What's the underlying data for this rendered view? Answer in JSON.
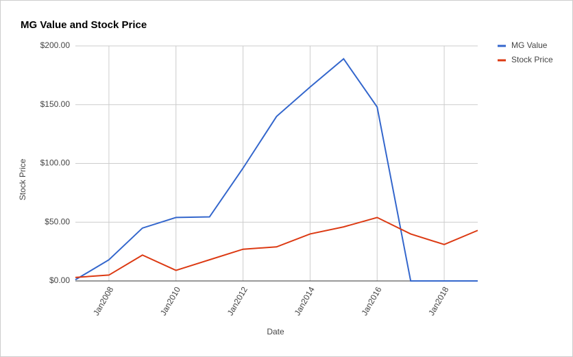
{
  "chart_data": {
    "type": "line",
    "title": "MG Value and Stock Price",
    "x_label": "Date",
    "y_label": "Stock Price",
    "x": [
      2007,
      2008,
      2009,
      2010,
      2011,
      2012,
      2013,
      2014,
      2015,
      2016,
      2017,
      2018,
      2019
    ],
    "series": [
      {
        "name": "MG Value",
        "color": "#3366cc",
        "values": [
          1,
          18,
          45,
          54,
          54.5,
          96,
          140,
          165,
          189,
          148,
          0,
          0,
          0
        ]
      },
      {
        "name": "Stock Price",
        "color": "#dc3912",
        "values": [
          3,
          5,
          22,
          9,
          18,
          27,
          29,
          40,
          46,
          54,
          40,
          31,
          43
        ]
      }
    ],
    "xlim": [
      2007,
      2019
    ],
    "xticks": [
      {
        "value": 2008,
        "label": "Jan2008"
      },
      {
        "value": 2010,
        "label": "Jan2010"
      },
      {
        "value": 2012,
        "label": "Jan2012"
      },
      {
        "value": 2014,
        "label": "Jan2014"
      },
      {
        "value": 2016,
        "label": "Jan2016"
      },
      {
        "value": 2018,
        "label": "Jan2018"
      }
    ],
    "ylim": [
      0,
      200
    ],
    "yticks": [
      {
        "value": 0,
        "label": "$0.00"
      },
      {
        "value": 50,
        "label": "$50.00"
      },
      {
        "value": 100,
        "label": "$100.00"
      },
      {
        "value": 150,
        "label": "$150.00"
      },
      {
        "value": 200,
        "label": "$200.00"
      }
    ],
    "grid": true,
    "legend": "right"
  }
}
